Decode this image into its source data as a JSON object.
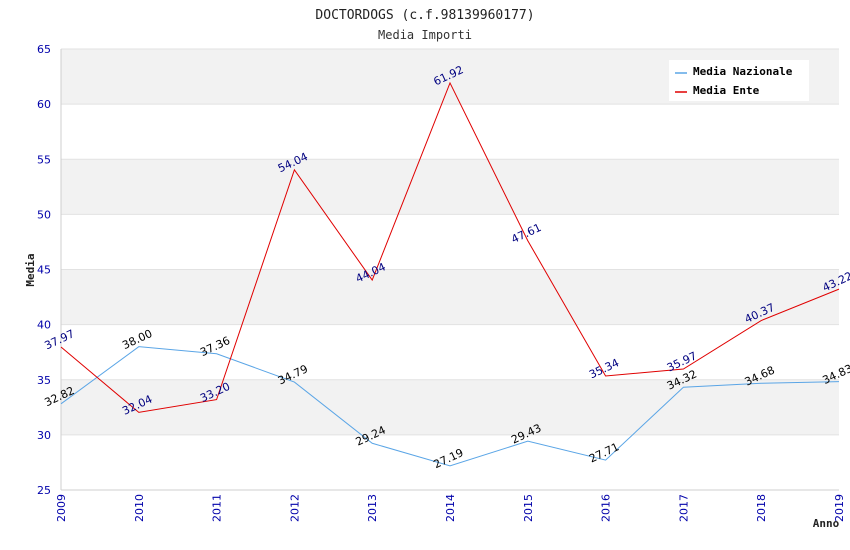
{
  "chart_data": {
    "type": "line",
    "title": "DOCTORDOGS (c.f.98139960177)",
    "subtitle": "Media Importi",
    "xlabel": "Anno",
    "ylabel": "Media",
    "ylim": [
      25,
      65
    ],
    "yticks": [
      25,
      30,
      35,
      40,
      45,
      50,
      55,
      60,
      65
    ],
    "categories": [
      "2009",
      "2010",
      "2011",
      "2012",
      "2013",
      "2014",
      "2015",
      "2016",
      "2017",
      "2018",
      "2019"
    ],
    "grid": true,
    "legend_position": "top-right",
    "series": [
      {
        "name": "Media Nazionale",
        "color": "#5aa5e6",
        "values": [
          32.82,
          38.0,
          37.36,
          34.79,
          29.24,
          27.19,
          29.43,
          27.71,
          34.32,
          34.68,
          34.83
        ],
        "labels": [
          "32.82",
          "38.00",
          "37.36",
          "34.79",
          "29.24",
          "27.19",
          "29.43",
          "27.71",
          "34.32",
          "34.68",
          "34.83"
        ]
      },
      {
        "name": "Media Ente",
        "color": "#e00000",
        "values": [
          37.97,
          32.04,
          33.2,
          54.04,
          44.04,
          61.92,
          47.61,
          35.34,
          35.97,
          40.37,
          43.22
        ],
        "labels": [
          "37.97",
          "32.04",
          "33.20",
          "54.04",
          "44.04",
          "61.92",
          "47.61",
          "35.34",
          "35.97",
          "40.37",
          "43.22"
        ]
      }
    ]
  }
}
